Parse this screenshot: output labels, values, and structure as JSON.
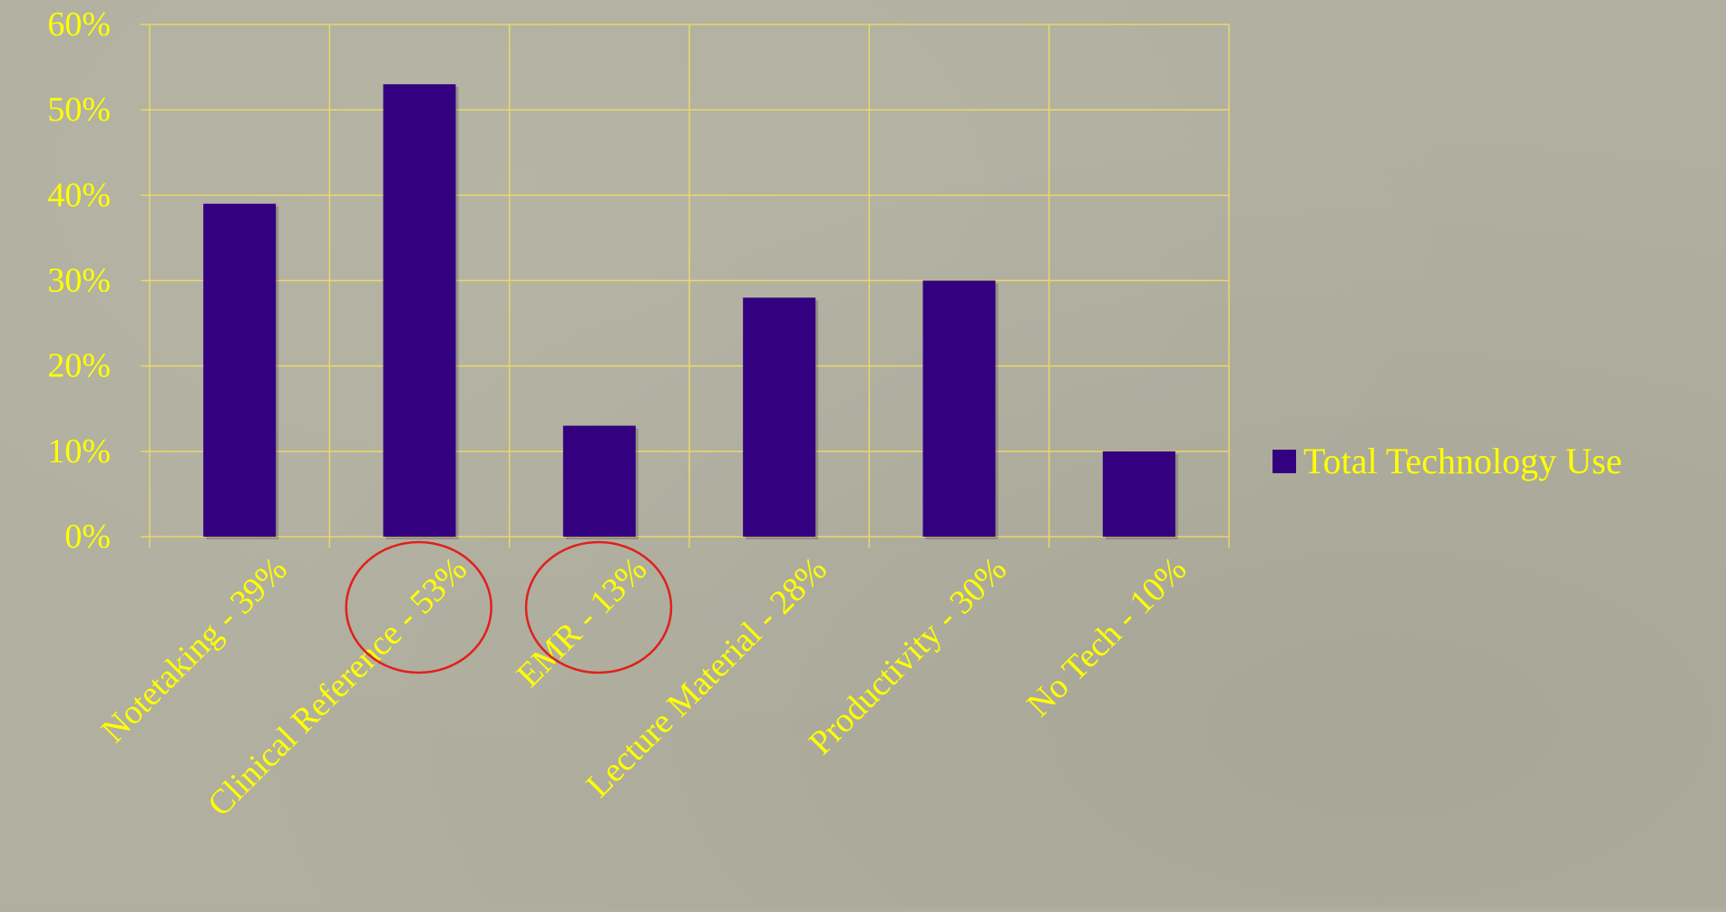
{
  "colors": {
    "background": "#b1af9f",
    "bar": "#330080",
    "text": "#ffff00",
    "grid": "#e8d86a",
    "highlight_circle": "#e0201c"
  },
  "chart_data": {
    "type": "bar",
    "title": "",
    "xlabel": "",
    "ylabel": "",
    "categories": [
      "Notetaking - 39%",
      "Clinical Reference - 53%",
      "EMR - 13%",
      "Lecture Material - 28%",
      "Productivity - 30%",
      "No Tech - 10%"
    ],
    "series": [
      {
        "name": "Total Technology Use",
        "values": [
          39,
          53,
          13,
          28,
          30,
          10
        ]
      }
    ],
    "ylim": [
      0,
      60
    ],
    "yticks": [
      0,
      10,
      20,
      30,
      40,
      50,
      60
    ],
    "ytick_labels": [
      "0%",
      "10%",
      "20%",
      "30%",
      "40%",
      "50%",
      "60%"
    ],
    "grid": true,
    "legend_position": "right",
    "highlighted_categories": [
      "Clinical Reference - 53%",
      "EMR - 13%"
    ]
  }
}
